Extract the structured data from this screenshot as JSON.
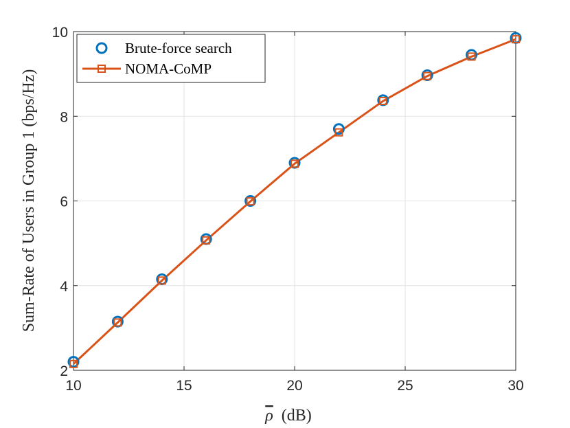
{
  "chart_data": {
    "type": "line",
    "title": "",
    "xlabel": "ρ (dB)",
    "xlabel_symbol": "ρ",
    "xlabel_unit": "(dB)",
    "ylabel": "Sum-Rate of Users in Group 1 (bps/Hz)",
    "xlim": [
      10,
      30
    ],
    "ylim": [
      2,
      10
    ],
    "xticks": [
      "10",
      "15",
      "20",
      "25",
      "30"
    ],
    "yticks": [
      "2",
      "4",
      "6",
      "8",
      "10"
    ],
    "grid": true,
    "legend_position": "top-left",
    "x": [
      10,
      12,
      14,
      16,
      18,
      20,
      22,
      24,
      26,
      28,
      30
    ],
    "series": [
      {
        "name": "Brute-force search",
        "marker": "circle",
        "line": "none",
        "color": "#0072bd",
        "values": [
          2.2,
          3.15,
          4.15,
          5.1,
          6.0,
          6.9,
          7.7,
          8.38,
          8.97,
          9.45,
          9.85
        ]
      },
      {
        "name": "NOMA-CoMP",
        "marker": "square",
        "line": "solid",
        "color": "#d95319",
        "values": [
          2.15,
          3.13,
          4.12,
          5.07,
          5.99,
          6.88,
          7.62,
          8.36,
          8.95,
          9.41,
          9.82
        ]
      }
    ]
  }
}
